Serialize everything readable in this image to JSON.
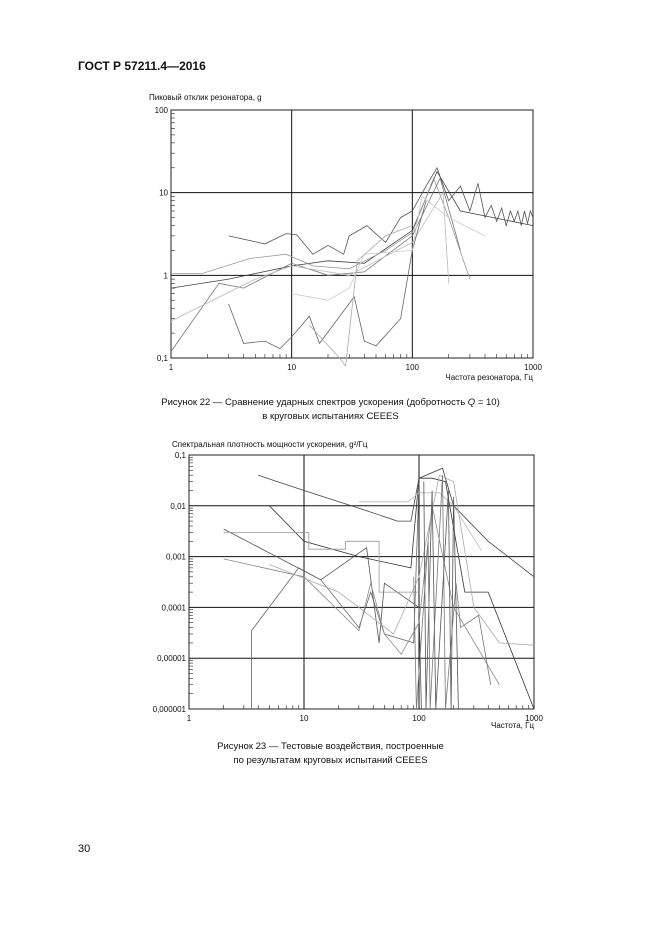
{
  "header": {
    "doc_id": "ГОСТ Р 57211.4—2016"
  },
  "figure22": {
    "caption_line1_pre": "Рисунок 22 — Сравнение ударных спектров ускорения (добротность ",
    "caption_q": "Q",
    "caption_line1_post": " = 10)",
    "caption_line2": "в круговых испытаниях CEEES"
  },
  "figure23": {
    "caption_line1": "Рисунок 23 — Тестовые воздействия, построенные",
    "caption_line2": "по результатам круговых испытаний CEEES"
  },
  "page_number": "30",
  "chart_data": [
    {
      "type": "line",
      "ylabel": "Пиковый отклик резонатора, g",
      "xlabel": "Частота резонатора, Гц",
      "xscale": "log",
      "yscale": "log",
      "xlim": [
        1,
        1000
      ],
      "ylim": [
        0.1,
        100
      ],
      "xticks": [
        "1",
        "10",
        "100",
        "1000"
      ],
      "yticks": [
        "0,1",
        "1",
        "10",
        "100"
      ],
      "grid": true,
      "series": [
        {
          "color": "#555555",
          "points": [
            [
              3,
              3
            ],
            [
              6,
              2.4
            ],
            [
              9,
              3.2
            ],
            [
              11,
              3.1
            ],
            [
              15,
              1.8
            ],
            [
              20,
              2.3
            ],
            [
              27,
              1.8
            ],
            [
              30,
              3
            ],
            [
              42,
              4
            ],
            [
              60,
              2.5
            ],
            [
              80,
              5
            ],
            [
              100,
              6
            ],
            [
              130,
              12
            ],
            [
              160,
              20
            ],
            [
              200,
              8
            ],
            [
              250,
              12
            ],
            [
              300,
              6
            ],
            [
              350,
              13
            ],
            [
              400,
              5
            ],
            [
              450,
              7
            ],
            [
              500,
              4.5
            ],
            [
              550,
              6.5
            ],
            [
              600,
              4
            ],
            [
              650,
              6
            ],
            [
              700,
              4.5
            ],
            [
              750,
              6
            ],
            [
              800,
              4
            ],
            [
              850,
              6
            ],
            [
              900,
              4.2
            ],
            [
              950,
              6
            ],
            [
              1000,
              5
            ]
          ]
        },
        {
          "color": "#444444",
          "points": [
            [
              1,
              0.7
            ],
            [
              3,
              0.9
            ],
            [
              10,
              1.3
            ],
            [
              20,
              1.5
            ],
            [
              40,
              1.4
            ],
            [
              100,
              3.5
            ],
            [
              160,
              18
            ],
            [
              250,
              6
            ],
            [
              1000,
              4
            ]
          ]
        },
        {
          "color": "#999999",
          "points": [
            [
              1,
              1.05
            ],
            [
              1.8,
              1.05
            ],
            [
              4.5,
              1.6
            ],
            [
              9,
              1.8
            ],
            [
              15,
              1.3
            ],
            [
              30,
              1.2
            ],
            [
              60,
              2
            ],
            [
              100,
              3.3
            ],
            [
              150,
              15
            ],
            [
              200,
              5
            ],
            [
              300,
              0.9
            ]
          ]
        },
        {
          "color": "#777777",
          "points": [
            [
              1,
              0.12
            ],
            [
              2.5,
              0.8
            ],
            [
              4,
              0.7
            ],
            [
              10,
              1.4
            ],
            [
              20,
              1
            ],
            [
              40,
              1.1
            ],
            [
              100,
              3
            ],
            [
              170,
              15
            ],
            [
              250,
              2
            ]
          ]
        },
        {
          "color": "#bbbbbb",
          "points": [
            [
              1,
              0.28
            ],
            [
              5,
              0.9
            ],
            [
              10,
              1.3
            ],
            [
              30,
              1
            ],
            [
              100,
              2.5
            ],
            [
              180,
              10
            ],
            [
              200,
              0.8
            ]
          ]
        },
        {
          "color": "#666666",
          "points": [
            [
              3,
              0.45
            ],
            [
              4,
              0.15
            ],
            [
              6,
              0.16
            ],
            [
              8,
              0.13
            ],
            [
              10,
              0.18
            ],
            [
              14,
              0.32
            ],
            [
              17,
              0.15
            ],
            [
              33,
              0.55
            ],
            [
              40,
              0.16
            ],
            [
              50,
              0.14
            ],
            [
              80,
              0.3
            ],
            [
              100,
              2
            ],
            [
              130,
              8
            ]
          ]
        },
        {
          "color": "#cccccc",
          "points": [
            [
              10,
              0.6
            ],
            [
              20,
              0.5
            ],
            [
              30,
              0.7
            ],
            [
              40,
              1.8
            ],
            [
              100,
              2
            ],
            [
              120,
              9
            ],
            [
              200,
              5
            ],
            [
              400,
              3
            ]
          ]
        },
        {
          "color": "#aaaaaa",
          "points": [
            [
              14,
              0.25
            ],
            [
              25,
              0.1
            ],
            [
              28,
              0.08
            ],
            [
              35,
              1.5
            ],
            [
              60,
              3
            ],
            [
              100,
              4
            ]
          ]
        }
      ]
    },
    {
      "type": "line",
      "ylabel": "Спектральная плотность мощности ускорения, g²/Гц",
      "xlabel": "Частота, Гц",
      "xscale": "log",
      "yscale": "log",
      "xlim": [
        1,
        1000
      ],
      "ylim": [
        1e-06,
        0.1
      ],
      "xticks": [
        "1",
        "10",
        "100",
        "1000"
      ],
      "yticks": [
        "0,000001",
        "0,00001",
        "0,0001",
        "0,001",
        "0,01",
        "0,1"
      ],
      "grid": true,
      "series": [
        {
          "color": "#444444",
          "points": [
            [
              4,
              0.04
            ],
            [
              10,
              0.02
            ],
            [
              35,
              0.008
            ],
            [
              65,
              0.005
            ],
            [
              85,
              0.005
            ],
            [
              100,
              0.035
            ],
            [
              160,
              0.055
            ],
            [
              200,
              0.01
            ],
            [
              400,
              0.002
            ],
            [
              1000,
              0.0004
            ]
          ]
        },
        {
          "color": "#333333",
          "points": [
            [
              5,
              0.01
            ],
            [
              10,
              0.002
            ],
            [
              30,
              0.001
            ],
            [
              85,
              0.0006
            ],
            [
              100,
              0.035
            ],
            [
              130,
              0.035
            ],
            [
              170,
              0.03
            ],
            [
              250,
              0.0002
            ],
            [
              400,
              0.0002
            ],
            [
              1000,
              1e-06
            ]
          ]
        },
        {
          "color": "#555555",
          "points": [
            [
              2,
              0.0035
            ],
            [
              14,
              0.00035
            ],
            [
              35,
              0.0015
            ],
            [
              45,
              2e-05
            ],
            [
              50,
              0.0003
            ],
            [
              100,
              0.0001
            ],
            [
              105,
              1e-06
            ]
          ]
        },
        {
          "color": "#999999",
          "points": [
            [
              2,
              0.003
            ],
            [
              11,
              0.003
            ],
            [
              11,
              0.0014
            ],
            [
              23,
              0.0014
            ],
            [
              23,
              0.002
            ],
            [
              45,
              0.002
            ],
            [
              45,
              0.0002
            ],
            [
              100,
              0.0002
            ]
          ]
        },
        {
          "color": "#666666",
          "points": [
            [
              3.5,
              1e-06
            ],
            [
              3.5,
              3.5e-05
            ],
            [
              9,
              0.0006
            ],
            [
              14,
              0.00035
            ],
            [
              30,
              4e-05
            ],
            [
              38,
              0.0002
            ],
            [
              50,
              3e-05
            ],
            [
              90,
              2e-05
            ],
            [
              100,
              0.03
            ]
          ]
        },
        {
          "color": "#888888",
          "points": [
            [
              2,
              0.0009
            ],
            [
              10,
              0.0004
            ],
            [
              30,
              3.5e-05
            ],
            [
              38,
              0.0003
            ],
            [
              50,
              3e-05
            ],
            [
              70,
              1.2e-05
            ],
            [
              100,
              5e-05
            ],
            [
              130,
              0.01
            ],
            [
              200,
              0.0001
            ],
            [
              500,
              3e-06
            ]
          ]
        },
        {
          "color": "#aaaaaa",
          "points": [
            [
              5,
              0.0007
            ],
            [
              20,
              0.0002
            ],
            [
              30,
              0.0001
            ],
            [
              60,
              3e-05
            ],
            [
              100,
              0.0004
            ],
            [
              150,
              0.04
            ],
            [
              200,
              0.03
            ],
            [
              300,
              0.0001
            ],
            [
              500,
              2e-05
            ],
            [
              1000,
              1.8e-05
            ]
          ]
        },
        {
          "color": "#bbbbbb",
          "points": [
            [
              30,
              0.012
            ],
            [
              80,
              0.012
            ],
            [
              100,
              0.018
            ],
            [
              150,
              0.018
            ],
            [
              200,
              0.01
            ],
            [
              350,
              0.0013
            ]
          ]
        },
        {
          "color": "#555555",
          "points": [
            [
              110,
              0.03
            ],
            [
              115,
              1e-06
            ],
            [
              130,
              0.02
            ],
            [
              140,
              1e-06
            ],
            [
              180,
              0.02
            ],
            [
              190,
              1e-06
            ],
            [
              200,
              0.015
            ],
            [
              220,
              1e-06
            ]
          ]
        },
        {
          "color": "#777777",
          "points": [
            [
              90,
              0.0004
            ],
            [
              95,
              1e-06
            ],
            [
              120,
              0.002
            ],
            [
              125,
              1e-06
            ],
            [
              160,
              0.04
            ],
            [
              170,
              1e-06
            ],
            [
              210,
              0.0003
            ],
            [
              230,
              4e-05
            ],
            [
              330,
              7e-05
            ],
            [
              420,
              3e-06
            ]
          ]
        }
      ]
    }
  ]
}
